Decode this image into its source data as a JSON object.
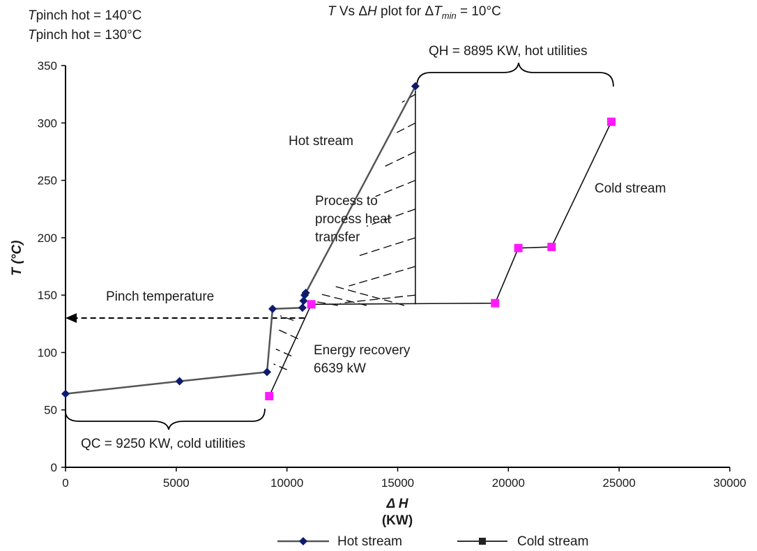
{
  "chart_data": {
    "type": "line",
    "title": "T  Vs ΔH plot for ΔTmin = 10°C",
    "title_parts": {
      "a": "T",
      "b": "  Vs ",
      "c": "Δ",
      "d": "H",
      "e": " plot for ",
      "f": "Δ",
      "g": "T",
      "h": "min",
      "i": " = 10°C"
    },
    "xlabel": "Δ H",
    "xlabel_unit": "(KW)",
    "ylabel": "T (°C)",
    "xlim": [
      0,
      30000
    ],
    "ylim": [
      0,
      350
    ],
    "xticks": [
      0,
      5000,
      10000,
      15000,
      20000,
      25000,
      30000
    ],
    "yticks": [
      0,
      50,
      100,
      150,
      200,
      250,
      300,
      350
    ],
    "grid": false,
    "legend_position": "bottom",
    "series": [
      {
        "name": "Hot stream",
        "color": "#0d1b6e",
        "marker": "diamond",
        "points": [
          [
            0,
            64
          ],
          [
            5150,
            75
          ],
          [
            9100,
            83
          ],
          [
            9350,
            138
          ],
          [
            10700,
            139
          ],
          [
            10750,
            145
          ],
          [
            10800,
            150
          ],
          [
            10850,
            152
          ],
          [
            15800,
            332
          ]
        ]
      },
      {
        "name": "Cold stream",
        "color": "#ff1aff",
        "marker": "square",
        "points": [
          [
            9200,
            62
          ],
          [
            11100,
            142
          ],
          [
            19400,
            143
          ],
          [
            20450,
            191
          ],
          [
            21950,
            192
          ],
          [
            24650,
            301
          ]
        ]
      }
    ],
    "annotations": {
      "pinch_hot": "Tpinch hot = 140°C",
      "pinch_cold": "Tpinch hot = 130°C",
      "qh": "QH = 8895 KW, hot utilities",
      "qc": "QC = 9250 KW, cold utilities",
      "hot_stream": "Hot stream",
      "cold_stream": "Cold stream",
      "process_1": "Process to",
      "process_2": "process heat",
      "process_3": "transfer",
      "pinch_temperature": "Pinch temperature",
      "energy_1": "Energy recovery",
      "energy_2": "6639 kW"
    },
    "pinch_line_value": 130
  }
}
